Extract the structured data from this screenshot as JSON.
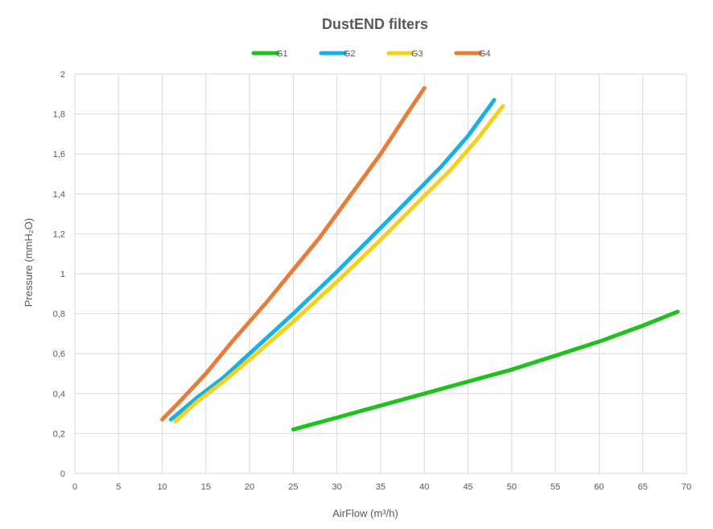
{
  "chart_data": {
    "type": "line",
    "title": "DustEND filters",
    "xlabel": "AirFlow (m³/h)",
    "ylabel": "Pressure  (mmH₂O)",
    "xlim": [
      0,
      70
    ],
    "ylim": [
      0,
      2
    ],
    "xticks": [
      "0",
      "5",
      "10",
      "15",
      "20",
      "25",
      "30",
      "35",
      "40",
      "45",
      "50",
      "55",
      "60",
      "65",
      "70"
    ],
    "yticks": [
      "0",
      "0,2",
      "0,4",
      "0,6",
      "0,8",
      "1",
      "1,2",
      "1,4",
      "1,6",
      "1,8",
      "2"
    ],
    "grid": true,
    "legend_position": "top",
    "series": [
      {
        "name": "G1",
        "color": "#1fc11f",
        "x": [
          25,
          30,
          35,
          40,
          45,
          50,
          55,
          60,
          65,
          69
        ],
        "y": [
          0.22,
          0.28,
          0.34,
          0.4,
          0.46,
          0.52,
          0.59,
          0.66,
          0.74,
          0.81
        ]
      },
      {
        "name": "G2",
        "color": "#1ab0e6",
        "x": [
          11,
          14,
          17,
          20,
          25,
          30,
          35,
          40,
          42,
          45,
          48
        ],
        "y": [
          0.27,
          0.38,
          0.48,
          0.6,
          0.8,
          1.01,
          1.23,
          1.45,
          1.54,
          1.69,
          1.87
        ]
      },
      {
        "name": "G3",
        "color": "#f2d21a",
        "x": [
          11.5,
          14,
          17,
          20,
          25,
          30,
          35,
          40,
          43,
          46,
          49
        ],
        "y": [
          0.26,
          0.36,
          0.46,
          0.57,
          0.76,
          0.96,
          1.17,
          1.39,
          1.52,
          1.67,
          1.84
        ]
      },
      {
        "name": "G4",
        "color": "#e67d3a",
        "x": [
          10,
          12,
          15,
          18,
          20,
          22,
          25,
          28,
          30,
          33,
          35,
          38,
          40
        ],
        "y": [
          0.27,
          0.36,
          0.5,
          0.66,
          0.76,
          0.86,
          1.02,
          1.18,
          1.3,
          1.48,
          1.6,
          1.8,
          1.93
        ]
      }
    ]
  }
}
